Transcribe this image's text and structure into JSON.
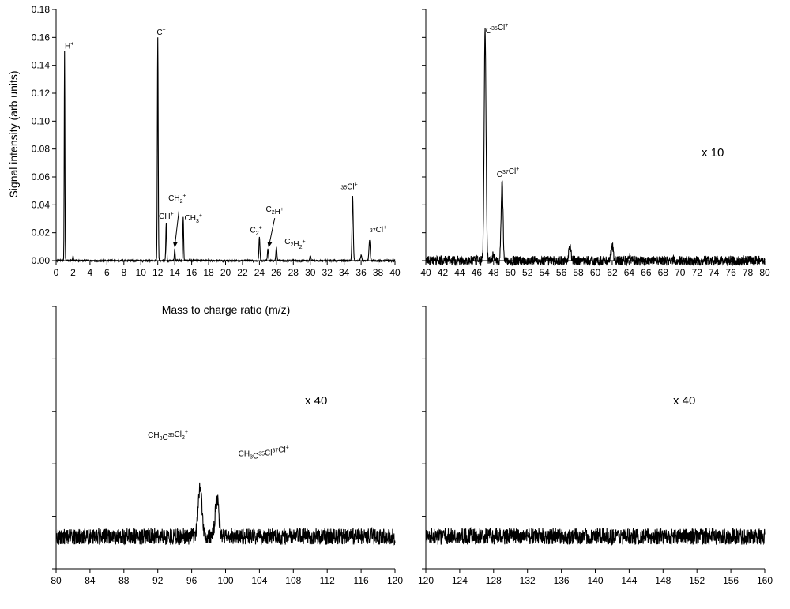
{
  "chart_data": {
    "type": "line",
    "ylabel": "Signal intensity (arb units)",
    "xlabel": "Mass to charge ratio (m/z)",
    "panels": [
      {
        "id": "p1",
        "xlim": [
          0,
          40
        ],
        "ylim": [
          0,
          0.18
        ],
        "xticks": [
          0,
          2,
          4,
          6,
          8,
          10,
          12,
          14,
          16,
          18,
          20,
          22,
          24,
          26,
          28,
          30,
          32,
          34,
          36,
          38,
          40
        ],
        "yticks": [
          0,
          0.02,
          0.04,
          0.06,
          0.08,
          0.1,
          0.12,
          0.14,
          0.16,
          0.18
        ],
        "ytick_labels": [
          "0.00",
          "0.02",
          "0.04",
          "0.06",
          "0.08",
          "0.10",
          "0.12",
          "0.14",
          "0.16",
          "0.18"
        ],
        "scale_label": "",
        "noise": 0.0006,
        "peaks": [
          {
            "x": 1,
            "y": 0.15,
            "w": 0.04
          },
          {
            "x": 2,
            "y": 0.004,
            "w": 0.04
          },
          {
            "x": 12,
            "y": 0.16,
            "w": 0.05
          },
          {
            "x": 13,
            "y": 0.027,
            "w": 0.05
          },
          {
            "x": 14,
            "y": 0.008,
            "w": 0.05
          },
          {
            "x": 15,
            "y": 0.031,
            "w": 0.05
          },
          {
            "x": 18,
            "y": 0.001,
            "w": 0.05
          },
          {
            "x": 24,
            "y": 0.017,
            "w": 0.06
          },
          {
            "x": 25,
            "y": 0.008,
            "w": 0.06
          },
          {
            "x": 26,
            "y": 0.01,
            "w": 0.06
          },
          {
            "x": 28,
            "y": 0.001,
            "w": 0.06
          },
          {
            "x": 30,
            "y": 0.004,
            "w": 0.06
          },
          {
            "x": 35,
            "y": 0.046,
            "w": 0.07
          },
          {
            "x": 36,
            "y": 0.004,
            "w": 0.07
          },
          {
            "x": 37,
            "y": 0.015,
            "w": 0.07
          }
        ]
      },
      {
        "id": "p2",
        "xlim": [
          40,
          80
        ],
        "ylim": [
          0,
          0.018
        ],
        "xticks": [
          40,
          42,
          44,
          46,
          48,
          50,
          52,
          54,
          56,
          58,
          60,
          62,
          64,
          66,
          68,
          70,
          72,
          74,
          76,
          78,
          80
        ],
        "scale_label": "x 10",
        "noise": 0.00035,
        "peaks": [
          {
            "x": 47,
            "y": 0.0165,
            "w": 0.11
          },
          {
            "x": 48,
            "y": 0.0005,
            "w": 0.1
          },
          {
            "x": 49,
            "y": 0.0057,
            "w": 0.11
          },
          {
            "x": 57,
            "y": 0.0011,
            "w": 0.12
          },
          {
            "x": 62,
            "y": 0.0011,
            "w": 0.12
          },
          {
            "x": 64,
            "y": 0.0003,
            "w": 0.12
          }
        ]
      },
      {
        "id": "p3",
        "xlim": [
          80,
          120
        ],
        "ylim": [
          -0.0007,
          0.005
        ],
        "xticks": [
          80,
          84,
          88,
          92,
          96,
          100,
          104,
          108,
          112,
          116,
          120
        ],
        "scale_label": "x 40",
        "noise": 0.00018,
        "peaks": [
          {
            "x": 97,
            "y": 0.0011,
            "w": 0.22
          },
          {
            "x": 99,
            "y": 0.0008,
            "w": 0.22
          }
        ]
      },
      {
        "id": "p4",
        "xlim": [
          120,
          160
        ],
        "ylim": [
          -0.0007,
          0.005
        ],
        "xticks": [
          120,
          124,
          128,
          132,
          136,
          140,
          144,
          148,
          152,
          156,
          160
        ],
        "scale_label": "x 40",
        "noise": 0.00018,
        "peaks": []
      }
    ],
    "annotations": [
      {
        "panel": "p1",
        "parts": [
          [
            "H",
            ""
          ],
          [
            "",
            "+"
          ]
        ],
        "x": 1.55,
        "y": 0.152
      },
      {
        "panel": "p1",
        "parts": [
          [
            "C",
            ""
          ],
          [
            "",
            "+"
          ]
        ],
        "x": 12.4,
        "y": 0.162
      },
      {
        "panel": "p1",
        "parts": [
          [
            "CH",
            ""
          ],
          [
            "",
            "+"
          ]
        ],
        "x": 13.0,
        "y": 0.03
      },
      {
        "panel": "p1",
        "parts": [
          [
            "CH",
            ""
          ],
          [
            "2",
            "+"
          ]
        ],
        "x": 14.3,
        "y": 0.043
      },
      {
        "panel": "p1",
        "parts": [
          [
            "CH",
            ""
          ],
          [
            "3",
            "+"
          ]
        ],
        "x": 16.2,
        "y": 0.029
      },
      {
        "panel": "p1",
        "parts": [
          [
            "C",
            ""
          ],
          [
            "2",
            "+"
          ]
        ],
        "x": 23.6,
        "y": 0.02
      },
      {
        "panel": "p1",
        "parts": [
          [
            "C",
            ""
          ],
          [
            "2",
            ""
          ],
          [
            "H",
            ""
          ],
          [
            "",
            "+"
          ]
        ],
        "x": 25.8,
        "y": 0.035
      },
      {
        "panel": "p1",
        "parts": [
          [
            "C",
            ""
          ],
          [
            "2",
            ""
          ],
          [
            "H",
            ""
          ],
          [
            "2",
            "+"
          ]
        ],
        "x": 28.2,
        "y": 0.012
      },
      {
        "panel": "p1",
        "parts": [
          [
            "",
            "35"
          ],
          [
            "Cl",
            ""
          ],
          [
            "",
            "+"
          ]
        ],
        "x": 34.6,
        "y": 0.049
      },
      {
        "panel": "p1",
        "parts": [
          [
            "",
            "37"
          ],
          [
            "Cl",
            ""
          ],
          [
            "",
            "+"
          ]
        ],
        "x": 38.0,
        "y": 0.018
      },
      {
        "panel": "p2",
        "parts": [
          [
            "C",
            ""
          ],
          [
            "",
            "35"
          ],
          [
            "Cl",
            ""
          ],
          [
            "",
            "+"
          ]
        ],
        "x": 48.4,
        "y": 0.0163
      },
      {
        "panel": "p2",
        "parts": [
          [
            "C",
            ""
          ],
          [
            "",
            "37"
          ],
          [
            "Cl",
            ""
          ],
          [
            "",
            "+"
          ]
        ],
        "x": 49.7,
        "y": 0.006
      },
      {
        "panel": "p3",
        "parts": [
          [
            "CH",
            ""
          ],
          [
            "3",
            ""
          ],
          [
            "C",
            ""
          ],
          [
            "",
            "35"
          ],
          [
            "Cl",
            ""
          ],
          [
            "2",
            "+"
          ]
        ],
        "x": 93.2,
        "y": 0.00215
      },
      {
        "panel": "p3",
        "parts": [
          [
            "CH",
            ""
          ],
          [
            "3",
            ""
          ],
          [
            "C",
            ""
          ],
          [
            "",
            "35"
          ],
          [
            "Cl",
            ""
          ],
          [
            "",
            "37"
          ],
          [
            "Cl",
            ""
          ],
          [
            "",
            "+"
          ]
        ],
        "x": 104.5,
        "y": 0.00175
      }
    ],
    "arrows": [
      {
        "panel": "p1",
        "from": [
          14.5,
          0.036
        ],
        "to": [
          14.0,
          0.01
        ]
      },
      {
        "panel": "p1",
        "from": [
          25.8,
          0.0305
        ],
        "to": [
          25.1,
          0.01
        ]
      }
    ]
  }
}
